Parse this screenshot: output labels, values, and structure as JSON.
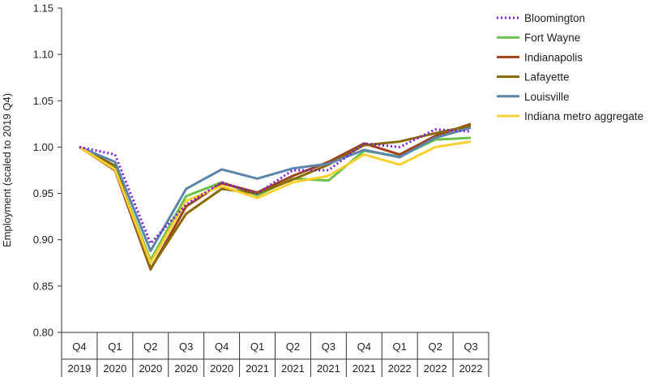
{
  "chart_data": {
    "type": "line",
    "title": "",
    "ylabel": "Employment (scaled to 2019 Q4)",
    "ylim": [
      0.8,
      1.15
    ],
    "yticks": [
      "0.80",
      "0.85",
      "0.90",
      "0.95",
      "1.00",
      "1.05",
      "1.10",
      "1.15"
    ],
    "x": [
      {
        "q": "Q4",
        "year": "2019"
      },
      {
        "q": "Q1",
        "year": "2020"
      },
      {
        "q": "Q2",
        "year": "2020"
      },
      {
        "q": "Q3",
        "year": "2020"
      },
      {
        "q": "Q4",
        "year": "2020"
      },
      {
        "q": "Q1",
        "year": "2021"
      },
      {
        "q": "Q2",
        "year": "2021"
      },
      {
        "q": "Q3",
        "year": "2021"
      },
      {
        "q": "Q4",
        "year": "2021"
      },
      {
        "q": "Q1",
        "year": "2022"
      },
      {
        "q": "Q2",
        "year": "2022"
      },
      {
        "q": "Q3",
        "year": "2022"
      }
    ],
    "legend_position": "right",
    "grid": false,
    "series": [
      {
        "name": "Bloomington",
        "color": "#7a1fd6",
        "style": "dotted",
        "values": [
          1.0,
          0.992,
          0.896,
          0.938,
          0.962,
          0.95,
          0.975,
          0.975,
          1.004,
          1.0,
          1.019,
          1.017
        ]
      },
      {
        "name": "Fort Wayne",
        "color": "#6cc04a",
        "style": "solid",
        "values": [
          1.0,
          0.977,
          0.878,
          0.947,
          0.962,
          0.948,
          0.966,
          0.964,
          0.996,
          0.99,
          1.008,
          1.01
        ]
      },
      {
        "name": "Indianapolis",
        "color": "#a0431b",
        "style": "solid",
        "values": [
          1.0,
          0.975,
          0.868,
          0.936,
          0.961,
          0.951,
          0.969,
          0.984,
          1.004,
          0.992,
          1.012,
          1.025
        ]
      },
      {
        "name": "Lafayette",
        "color": "#8a6a00",
        "style": "solid",
        "values": [
          1.0,
          0.98,
          0.869,
          0.928,
          0.955,
          0.95,
          0.965,
          0.981,
          1.002,
          1.006,
          1.015,
          1.023
        ]
      },
      {
        "name": "Louisville",
        "color": "#5b85ad",
        "style": "solid",
        "values": [
          1.0,
          0.984,
          0.888,
          0.955,
          0.976,
          0.966,
          0.977,
          0.982,
          0.997,
          0.989,
          1.01,
          1.021
        ]
      },
      {
        "name": "Indiana metro aggregate",
        "color": "#f8d131",
        "style": "solid",
        "values": [
          1.0,
          0.976,
          0.875,
          0.942,
          0.958,
          0.945,
          0.962,
          0.969,
          0.992,
          0.981,
          1.0,
          1.006
        ]
      }
    ]
  }
}
